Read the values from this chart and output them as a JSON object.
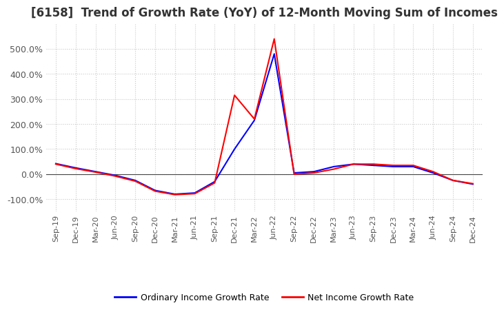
{
  "title": "[6158]  Trend of Growth Rate (YoY) of 12-Month Moving Sum of Incomes",
  "title_fontsize": 12,
  "ylim": [
    -150,
    600
  ],
  "yticks": [
    -100,
    0,
    100,
    200,
    300,
    400,
    500
  ],
  "ytick_labels": [
    "-100.0%",
    "0.0%",
    "100.0%",
    "200.0%",
    "300.0%",
    "400.0%",
    "500.0%"
  ],
  "legend_labels": [
    "Ordinary Income Growth Rate",
    "Net Income Growth Rate"
  ],
  "legend_colors": [
    "#0000ff",
    "#ff0000"
  ],
  "background_color": "#ffffff",
  "grid_color": "#c8c8c8",
  "x_labels": [
    "Sep-19",
    "Dec-19",
    "Mar-20",
    "Jun-20",
    "Sep-20",
    "Dec-20",
    "Mar-21",
    "Jun-21",
    "Sep-21",
    "Dec-21",
    "Mar-22",
    "Jun-22",
    "Sep-22",
    "Dec-22",
    "Mar-23",
    "Jun-23",
    "Sep-23",
    "Dec-23",
    "Mar-24",
    "Jun-24",
    "Sep-24",
    "Dec-24"
  ],
  "ordinary_income": [
    42,
    25,
    10,
    -5,
    -25,
    -65,
    -80,
    -75,
    -30,
    100,
    215,
    480,
    5,
    10,
    30,
    40,
    35,
    30,
    30,
    5,
    -25,
    -40
  ],
  "net_income": [
    40,
    22,
    8,
    -8,
    -28,
    -68,
    -82,
    -78,
    -35,
    315,
    220,
    540,
    0,
    5,
    20,
    40,
    40,
    35,
    35,
    10,
    -25,
    -38
  ]
}
